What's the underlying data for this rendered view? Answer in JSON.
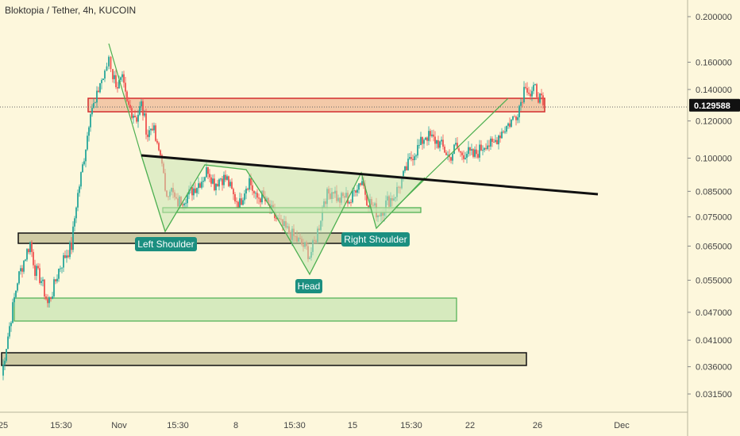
{
  "header": {
    "title": "Bloktopia / Tether, 4h, KUCOIN"
  },
  "chart_data": {
    "type": "candlestick",
    "y_axis": {
      "scale": "log",
      "ticks": [
        "0.200000",
        "0.160000",
        "0.140000",
        "0.120000",
        "0.100000",
        "0.085000",
        "0.075000",
        "0.065000",
        "0.055000",
        "0.047000",
        "0.041000",
        "0.036000",
        "0.031500"
      ]
    },
    "x_axis": {
      "ticks": [
        "25",
        "15:30",
        "Nov",
        "15:30",
        "8",
        "15:30",
        "15",
        "15:30",
        "22",
        "26",
        "Dec"
      ]
    },
    "last_price": {
      "label": "0.129588",
      "value": 0.129588
    },
    "annotations": {
      "left_shoulder": "Left Shoulder",
      "head": "Head",
      "right_shoulder": "Right Shoulder"
    },
    "colors": {
      "up": "#26a69a",
      "down": "#ef5350",
      "neckline": "#111111",
      "pattern_fill": "#c8e6b4",
      "pattern_stroke": "#4caf50",
      "resistance_fill": "#f3c9a8",
      "resistance_stroke": "#d32f2f",
      "support_fill": "#cfcba4",
      "label_bg": "#1b8f80"
    }
  }
}
